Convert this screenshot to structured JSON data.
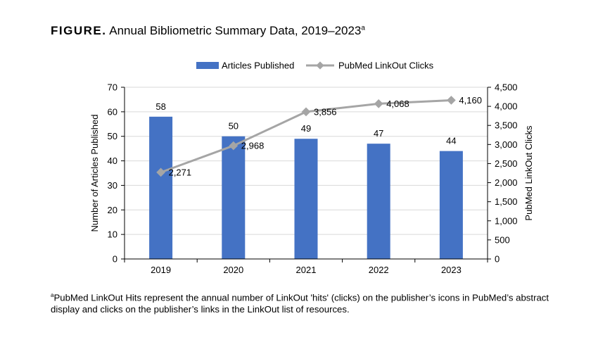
{
  "figure": {
    "label": "FIGURE.",
    "title": "Annual Bibliometric Summary Data, 2019–2023",
    "title_marker": "a"
  },
  "chart_data": {
    "type": "bar",
    "categories": [
      "2019",
      "2020",
      "2021",
      "2022",
      "2023"
    ],
    "series": [
      {
        "name": "Articles Published",
        "type": "bar",
        "axis": "left",
        "color": "#4472C4",
        "values": [
          58,
          50,
          49,
          47,
          44
        ],
        "labels": [
          "58",
          "50",
          "49",
          "47",
          "44"
        ]
      },
      {
        "name": "PubMed LinkOut Clicks",
        "type": "line",
        "axis": "right",
        "color": "#A5A5A5",
        "values": [
          2271,
          2968,
          3856,
          4068,
          4160
        ],
        "labels": [
          "2,271",
          "2,968",
          "3,856",
          "4,068",
          "4,160"
        ]
      }
    ],
    "ylabel": "Number of Articles Published",
    "y2label": "PubMed LinkOut Clicks",
    "ylim": [
      0,
      70
    ],
    "y2lim": [
      0,
      4500
    ],
    "yticks": [
      "0",
      "10",
      "20",
      "30",
      "40",
      "50",
      "60",
      "70"
    ],
    "y2ticks": [
      "0",
      "500",
      "1,000",
      "1,500",
      "2,000",
      "2,500",
      "3,000",
      "3,500",
      "4,000",
      "4,500"
    ],
    "grid": true,
    "legend": "top-center"
  },
  "footnote": {
    "marker": "a",
    "text": "PubMed LinkOut Hits represent the annual number of LinkOut 'hits' (clicks) on the publisher’s icons in PubMed’s abstract display and clicks on the publisher’s links in the LinkOut list of resources."
  }
}
